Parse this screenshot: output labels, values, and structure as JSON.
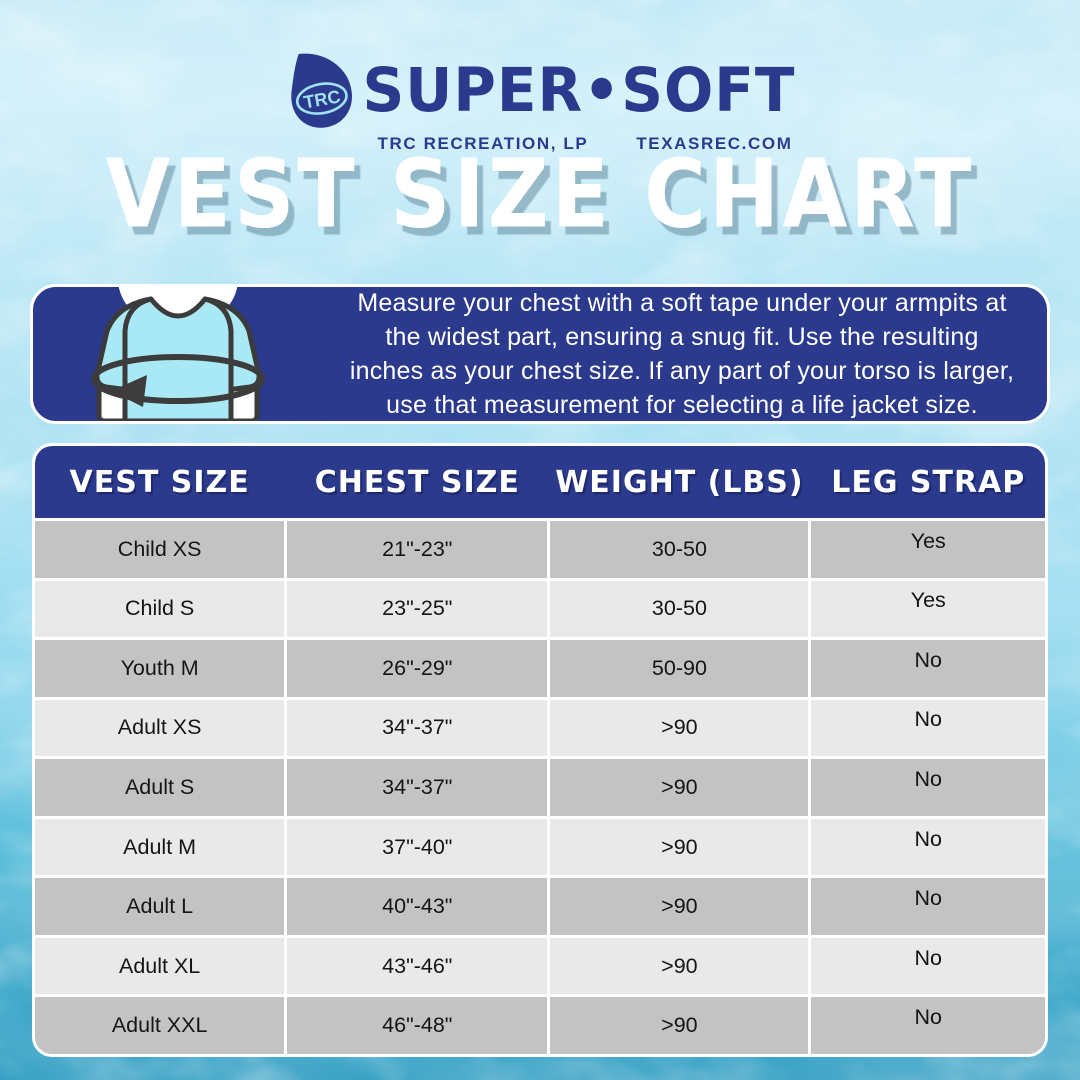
{
  "brand": {
    "drop_label": "TRC",
    "name": "SUPER•SOFT",
    "tagline_left": "TRC RECREATION, LP",
    "tagline_right": "TEXASREC.COM"
  },
  "title": "VEST SIZE CHART",
  "instruction_lines": [
    "Measure your chest with a soft tape under your armpits at",
    "the widest part, ensuring a snug fit. Use the resulting",
    "inches as your chest size. If any part of your torso is larger,",
    "use that measurement for selecting a life jacket size."
  ],
  "size_table": {
    "headers": [
      "VEST SIZE",
      "CHEST SIZE",
      "WEIGHT (LBS)",
      "LEG STRAP"
    ],
    "rows": [
      {
        "vest": "Child XS",
        "chest": "21\"-23\"",
        "weight": "30-50",
        "leg": "Yes"
      },
      {
        "vest": "Child S",
        "chest": "23\"-25\"",
        "weight": "30-50",
        "leg": "Yes"
      },
      {
        "vest": "Youth M",
        "chest": "26\"-29\"",
        "weight": "50-90",
        "leg": "No"
      },
      {
        "vest": "Adult XS",
        "chest": "34\"-37\"",
        "weight": ">90",
        "leg": "No"
      },
      {
        "vest": "Adult S",
        "chest": "34\"-37\"",
        "weight": ">90",
        "leg": "No"
      },
      {
        "vest": "Adult M",
        "chest": "37\"-40\"",
        "weight": ">90",
        "leg": "No"
      },
      {
        "vest": "Adult L",
        "chest": "40\"-43\"",
        "weight": ">90",
        "leg": "No"
      },
      {
        "vest": "Adult XL",
        "chest": "43\"-46\"",
        "weight": ">90",
        "leg": "No"
      },
      {
        "vest": "Adult XXL",
        "chest": "46\"-48\"",
        "weight": ">90",
        "leg": "No"
      }
    ]
  },
  "colors": {
    "navy": "#2c3a8e",
    "row_dark": "#c3c3c3",
    "row_light": "#e9e9e9",
    "shirt_fill": "#a9e9f6",
    "shirt_stroke": "#3b3b3b",
    "water_top": "#c4eaf7",
    "water_bottom": "#2f9dc2"
  },
  "chart_data": {
    "type": "table",
    "title": "VEST SIZE CHART",
    "columns": [
      "VEST SIZE",
      "CHEST SIZE",
      "WEIGHT (LBS)",
      "LEG STRAP"
    ],
    "rows": [
      [
        "Child XS",
        "21\"-23\"",
        "30-50",
        "Yes"
      ],
      [
        "Child S",
        "23\"-25\"",
        "30-50",
        "Yes"
      ],
      [
        "Youth M",
        "26\"-29\"",
        "50-90",
        "No"
      ],
      [
        "Adult XS",
        "34\"-37\"",
        ">90",
        "No"
      ],
      [
        "Adult S",
        "34\"-37\"",
        ">90",
        "No"
      ],
      [
        "Adult M",
        "37\"-40\"",
        ">90",
        "No"
      ],
      [
        "Adult L",
        "40\"-43\"",
        ">90",
        "No"
      ],
      [
        "Adult XL",
        "43\"-46\"",
        ">90",
        "No"
      ],
      [
        "Adult XXL",
        "46\"-48\"",
        ">90",
        "No"
      ]
    ]
  }
}
